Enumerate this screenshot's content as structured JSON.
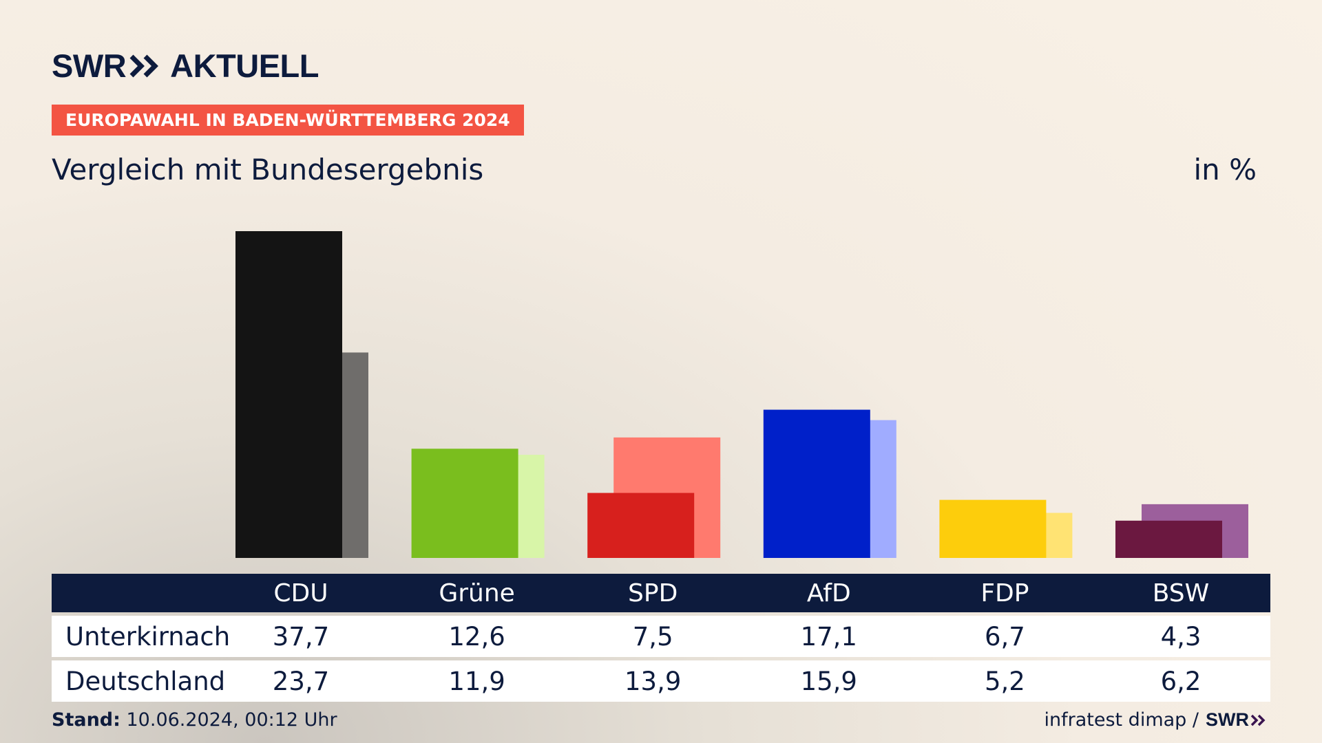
{
  "brand": {
    "logo_left": "SWR",
    "logo_right": "AKTUELL",
    "tag": "EUROPAWAHL IN BADEN-WÜRTTEMBERG 2024",
    "small_logo": "SWR"
  },
  "subtitle": "Vergleich mit Bundesergebnis",
  "unit": "in %",
  "footer": {
    "stand_label": "Stand:",
    "stand_value": " 10.06.2024, 00:12 Uhr",
    "source": "infratest dimap /"
  },
  "table": {
    "rows": [
      {
        "label": "Unterkirnach",
        "values": [
          "37,7",
          "12,6",
          "7,5",
          "17,1",
          "6,7",
          "4,3"
        ]
      },
      {
        "label": "Deutschland",
        "values": [
          "23,7",
          "11,9",
          "13,9",
          "15,9",
          "5,2",
          "6,2"
        ]
      }
    ]
  },
  "chart_data": {
    "type": "bar",
    "categories": [
      "CDU",
      "Grüne",
      "SPD",
      "AfD",
      "FDP",
      "BSW"
    ],
    "series": [
      {
        "name": "Unterkirnach",
        "values": [
          37.7,
          12.6,
          7.5,
          17.1,
          6.7,
          4.3
        ]
      },
      {
        "name": "Deutschland",
        "values": [
          23.7,
          11.9,
          13.9,
          15.9,
          5.2,
          6.2
        ]
      }
    ],
    "colors_primary": [
      "#141414",
      "#7abe1e",
      "#d7201d",
      "#0020c9",
      "#fdcd0c",
      "#6b1840"
    ],
    "colors_secondary": [
      "#6f6d6b",
      "#d8f5a8",
      "#ff7a6e",
      "#a0acff",
      "#ffe373",
      "#9c5f9c"
    ],
    "ylim": [
      0,
      37.7
    ]
  }
}
